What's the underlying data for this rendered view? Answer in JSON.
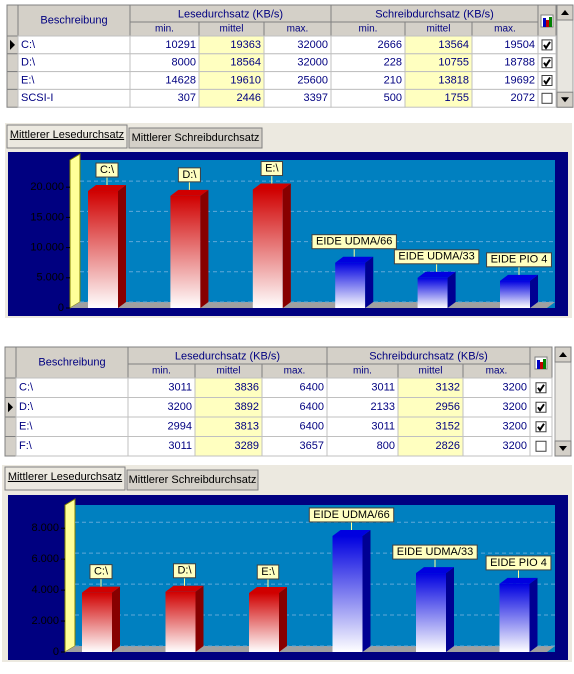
{
  "panels": [
    {
      "table": {
        "description": "Beschreibung",
        "read": "Lesedurchsatz (KB/s)",
        "write": "Schreibdurchsatz (KB/s)",
        "sub": [
          "min.",
          "mittel",
          "max.",
          "min.",
          "mittel",
          "max."
        ],
        "current_row": 0,
        "rows": [
          {
            "name": "C:\\",
            "values": [
              10291,
              19363,
              32000,
              2666,
              13564,
              19504
            ],
            "checked": true
          },
          {
            "name": "D:\\",
            "values": [
              8000,
              18564,
              32000,
              228,
              10755,
              18788
            ],
            "checked": true
          },
          {
            "name": "E:\\",
            "values": [
              14628,
              19610,
              25600,
              210,
              13818,
              19692
            ],
            "checked": true
          },
          {
            "name": "SCSI-I",
            "values": [
              307,
              2446,
              3397,
              500,
              1755,
              2072
            ],
            "checked": false
          }
        ]
      },
      "tabs": [
        "Mittlerer Lesedurchsatz",
        "Mittlerer Schreibdurchsatz"
      ],
      "chart_data": {
        "type": "bar3d",
        "categories": [
          "C:\\",
          "D:\\",
          "E:\\",
          "EIDE UDMA/66",
          "EIDE UDMA/33",
          "EIDE PIO 4"
        ],
        "values": [
          19363,
          18564,
          19610,
          7500,
          5000,
          4500
        ],
        "colors": [
          "#d00000",
          "#d00000",
          "#d00000",
          "#0000e0",
          "#0000e0",
          "#0000e0"
        ],
        "ylim": [
          0,
          24500
        ],
        "yticks": [
          0,
          {
            "value": 5000,
            "label": "5.000"
          },
          {
            "value": 10000,
            "label": "10.000"
          },
          {
            "value": 15000,
            "label": "15.000"
          },
          {
            "value": 20000,
            "label": "20.000"
          }
        ],
        "grid": true
      }
    },
    {
      "table": {
        "description": "Beschreibung",
        "read": "Lesedurchsatz (KB/s)",
        "write": "Schreibdurchsatz (KB/s)",
        "sub": [
          "min.",
          "mittel",
          "max.",
          "min.",
          "mittel",
          "max."
        ],
        "current_row": 1,
        "rows": [
          {
            "name": "C:\\",
            "values": [
              3011,
              3836,
              6400,
              3011,
              3132,
              3200
            ],
            "checked": true
          },
          {
            "name": "D:\\",
            "values": [
              3200,
              3892,
              6400,
              2133,
              2956,
              3200
            ],
            "checked": true
          },
          {
            "name": "E:\\",
            "values": [
              2994,
              3813,
              6400,
              3011,
              3152,
              3200
            ],
            "checked": true
          },
          {
            "name": "F:\\",
            "values": [
              3011,
              3289,
              3657,
              800,
              2826,
              3200
            ],
            "checked": false
          }
        ]
      },
      "tabs": [
        "Mittlerer Lesedurchsatz",
        "Mittlerer Schreibdurchsatz"
      ],
      "chart_data": {
        "type": "bar3d",
        "categories": [
          "C:\\",
          "D:\\",
          "E:\\",
          "EIDE UDMA/66",
          "EIDE UDMA/33",
          "EIDE PIO 4"
        ],
        "values": [
          3836,
          3892,
          3813,
          7500,
          5100,
          4400
        ],
        "colors": [
          "#d00000",
          "#d00000",
          "#d00000",
          "#0000e0",
          "#0000e0",
          "#0000e0"
        ],
        "ylim": [
          0,
          9500
        ],
        "yticks": [
          0,
          {
            "value": 2000,
            "label": "2.000"
          },
          {
            "value": 4000,
            "label": "4.000"
          },
          {
            "value": 6000,
            "label": "6.000"
          },
          {
            "value": 8000,
            "label": "8.000"
          }
        ],
        "grid": true
      }
    }
  ]
}
